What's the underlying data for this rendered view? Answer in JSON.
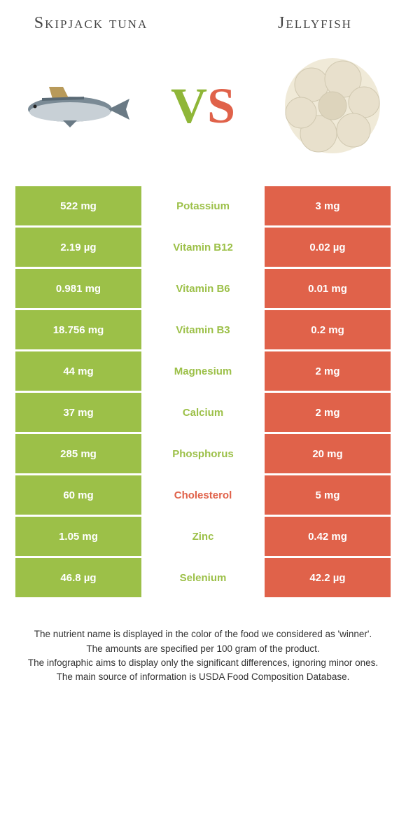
{
  "colors": {
    "green": "#9cc048",
    "orange": "#e0624a",
    "mid_bg": "#ffffff"
  },
  "header": {
    "left_title": "Skipjack tuna",
    "right_title": "Jellyfish",
    "vs_v": "V",
    "vs_s": "S"
  },
  "rows": [
    {
      "left": "522 mg",
      "label": "Potassium",
      "right": "3 mg",
      "winner": "left"
    },
    {
      "left": "2.19 µg",
      "label": "Vitamin B12",
      "right": "0.02 µg",
      "winner": "left"
    },
    {
      "left": "0.981 mg",
      "label": "Vitamin B6",
      "right": "0.01 mg",
      "winner": "left"
    },
    {
      "left": "18.756 mg",
      "label": "Vitamin B3",
      "right": "0.2 mg",
      "winner": "left"
    },
    {
      "left": "44 mg",
      "label": "Magnesium",
      "right": "2 mg",
      "winner": "left"
    },
    {
      "left": "37 mg",
      "label": "Calcium",
      "right": "2 mg",
      "winner": "left"
    },
    {
      "left": "285 mg",
      "label": "Phosphorus",
      "right": "20 mg",
      "winner": "left"
    },
    {
      "left": "60 mg",
      "label": "Cholesterol",
      "right": "5 mg",
      "winner": "right"
    },
    {
      "left": "1.05 mg",
      "label": "Zinc",
      "right": "0.42 mg",
      "winner": "left"
    },
    {
      "left": "46.8 µg",
      "label": "Selenium",
      "right": "42.2 µg",
      "winner": "left"
    }
  ],
  "footer": {
    "line1": "The nutrient name is displayed in the color of the food we considered as 'winner'.",
    "line2": "The amounts are specified per 100 gram of the product.",
    "line3": "The infographic aims to display only the significant differences, ignoring minor ones.",
    "line4": "The main source of information is USDA Food Composition Database."
  }
}
